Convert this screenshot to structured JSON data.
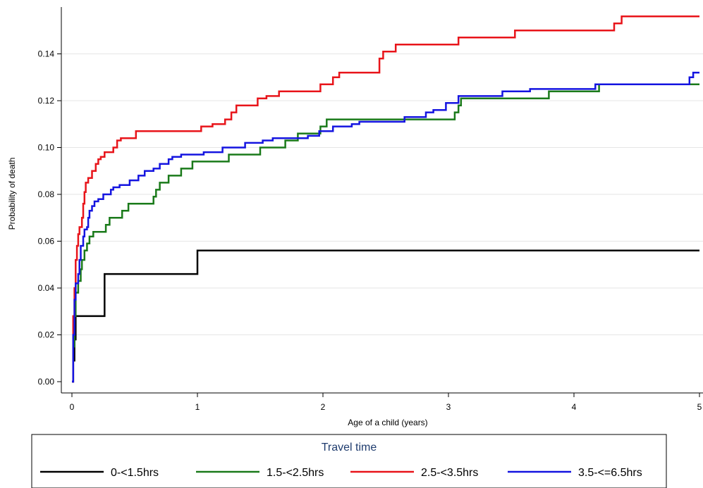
{
  "chart_data": {
    "type": "line",
    "step": true,
    "title": "",
    "xlabel": "Age of a child (years)",
    "ylabel": "Probability of death",
    "xlim": [
      0,
      5
    ],
    "ylim": [
      0,
      0.16
    ],
    "xticks": [
      0,
      1,
      2,
      3,
      4,
      5
    ],
    "xtick_labels": [
      "0",
      "1",
      "2",
      "3",
      "4",
      "5"
    ],
    "yticks": [
      0,
      0.02,
      0.04,
      0.06,
      0.08,
      0.1,
      0.12,
      0.14
    ],
    "ytick_labels": [
      "0.00",
      "0.02",
      "0.04",
      "0.06",
      "0.08",
      "0.10",
      "0.12",
      "0.14"
    ],
    "grid": "horizontal",
    "legend": {
      "title": "Travel time",
      "position": "bottom"
    },
    "series": [
      {
        "name": "0-<1.5hrs",
        "color": "#000000",
        "points": [
          [
            0,
            0
          ],
          [
            0.01,
            0.009
          ],
          [
            0.02,
            0.018
          ],
          [
            0.03,
            0.028
          ],
          [
            0.26,
            0.046
          ],
          [
            1.0,
            0.056
          ],
          [
            5.0,
            0.056
          ]
        ]
      },
      {
        "name": "1.5-<2.5hrs",
        "color": "#1a7a1a",
        "points": [
          [
            0,
            0
          ],
          [
            0.01,
            0.015
          ],
          [
            0.02,
            0.028
          ],
          [
            0.03,
            0.038
          ],
          [
            0.05,
            0.043
          ],
          [
            0.07,
            0.048
          ],
          [
            0.08,
            0.052
          ],
          [
            0.1,
            0.056
          ],
          [
            0.12,
            0.059
          ],
          [
            0.14,
            0.062
          ],
          [
            0.17,
            0.064
          ],
          [
            0.27,
            0.067
          ],
          [
            0.3,
            0.07
          ],
          [
            0.4,
            0.073
          ],
          [
            0.45,
            0.076
          ],
          [
            0.65,
            0.079
          ],
          [
            0.67,
            0.082
          ],
          [
            0.7,
            0.085
          ],
          [
            0.77,
            0.088
          ],
          [
            0.87,
            0.091
          ],
          [
            0.96,
            0.094
          ],
          [
            1.25,
            0.097
          ],
          [
            1.5,
            0.1
          ],
          [
            1.7,
            0.103
          ],
          [
            1.8,
            0.106
          ],
          [
            1.98,
            0.109
          ],
          [
            2.03,
            0.112
          ],
          [
            3.05,
            0.115
          ],
          [
            3.08,
            0.118
          ],
          [
            3.1,
            0.121
          ],
          [
            3.8,
            0.124
          ],
          [
            4.2,
            0.127
          ],
          [
            5.0,
            0.127
          ]
        ]
      },
      {
        "name": "2.5-<3.5hrs",
        "color": "#e8141a",
        "points": [
          [
            0,
            0
          ],
          [
            0.01,
            0.028
          ],
          [
            0.02,
            0.04
          ],
          [
            0.03,
            0.052
          ],
          [
            0.04,
            0.058
          ],
          [
            0.05,
            0.063
          ],
          [
            0.06,
            0.066
          ],
          [
            0.08,
            0.07
          ],
          [
            0.09,
            0.076
          ],
          [
            0.1,
            0.081
          ],
          [
            0.11,
            0.085
          ],
          [
            0.13,
            0.087
          ],
          [
            0.16,
            0.09
          ],
          [
            0.19,
            0.093
          ],
          [
            0.21,
            0.095
          ],
          [
            0.23,
            0.096
          ],
          [
            0.26,
            0.098
          ],
          [
            0.33,
            0.1
          ],
          [
            0.36,
            0.103
          ],
          [
            0.39,
            0.104
          ],
          [
            0.51,
            0.107
          ],
          [
            1.03,
            0.109
          ],
          [
            1.12,
            0.11
          ],
          [
            1.22,
            0.112
          ],
          [
            1.27,
            0.115
          ],
          [
            1.31,
            0.118
          ],
          [
            1.48,
            0.121
          ],
          [
            1.55,
            0.122
          ],
          [
            1.65,
            0.124
          ],
          [
            1.98,
            0.127
          ],
          [
            2.08,
            0.13
          ],
          [
            2.13,
            0.132
          ],
          [
            2.45,
            0.138
          ],
          [
            2.48,
            0.141
          ],
          [
            2.58,
            0.144
          ],
          [
            3.08,
            0.147
          ],
          [
            3.53,
            0.15
          ],
          [
            4.32,
            0.153
          ],
          [
            4.38,
            0.156
          ],
          [
            5.0,
            0.156
          ]
        ]
      },
      {
        "name": "3.5-<=6.5hrs",
        "color": "#1414e0",
        "points": [
          [
            0,
            0
          ],
          [
            0.01,
            0.02
          ],
          [
            0.02,
            0.035
          ],
          [
            0.03,
            0.042
          ],
          [
            0.05,
            0.046
          ],
          [
            0.06,
            0.052
          ],
          [
            0.07,
            0.058
          ],
          [
            0.09,
            0.062
          ],
          [
            0.1,
            0.065
          ],
          [
            0.12,
            0.066
          ],
          [
            0.13,
            0.07
          ],
          [
            0.14,
            0.073
          ],
          [
            0.16,
            0.075
          ],
          [
            0.18,
            0.077
          ],
          [
            0.21,
            0.078
          ],
          [
            0.25,
            0.08
          ],
          [
            0.31,
            0.082
          ],
          [
            0.33,
            0.083
          ],
          [
            0.38,
            0.084
          ],
          [
            0.46,
            0.086
          ],
          [
            0.53,
            0.088
          ],
          [
            0.58,
            0.09
          ],
          [
            0.65,
            0.091
          ],
          [
            0.7,
            0.093
          ],
          [
            0.77,
            0.095
          ],
          [
            0.8,
            0.096
          ],
          [
            0.87,
            0.097
          ],
          [
            1.05,
            0.098
          ],
          [
            1.2,
            0.1
          ],
          [
            1.38,
            0.102
          ],
          [
            1.52,
            0.103
          ],
          [
            1.6,
            0.104
          ],
          [
            1.88,
            0.105
          ],
          [
            1.97,
            0.107
          ],
          [
            2.08,
            0.109
          ],
          [
            2.23,
            0.11
          ],
          [
            2.29,
            0.111
          ],
          [
            2.65,
            0.113
          ],
          [
            2.82,
            0.115
          ],
          [
            2.88,
            0.116
          ],
          [
            2.98,
            0.119
          ],
          [
            3.08,
            0.122
          ],
          [
            3.43,
            0.124
          ],
          [
            3.65,
            0.125
          ],
          [
            4.17,
            0.127
          ],
          [
            4.92,
            0.13
          ],
          [
            4.95,
            0.132
          ],
          [
            5.0,
            0.132
          ]
        ]
      }
    ]
  }
}
